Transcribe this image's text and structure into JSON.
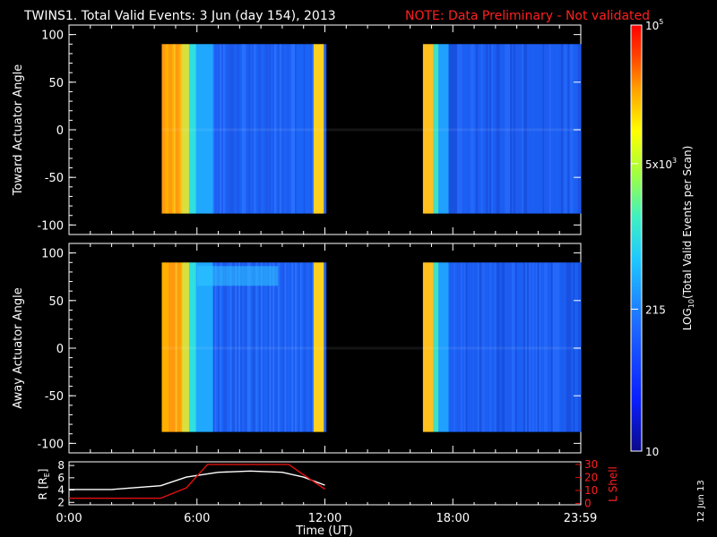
{
  "chart_data": {
    "type": "heatmap",
    "title": "TWINS1. Total Valid Events:  3 Jun (day 154), 2013",
    "note": "NOTE: Data Preliminary - Not validated",
    "colorbar": {
      "label": "LOG",
      "label_sub": "10",
      "label_rest": "(Total Valid Events per Scan)",
      "ticks": [
        {
          "base": "10",
          "exp": "5",
          "value": 100000
        },
        {
          "base": "5x10",
          "exp": "3",
          "value": 5000
        },
        {
          "base": "215",
          "exp": "",
          "value": 215
        },
        {
          "base": "10",
          "exp": "",
          "value": 10
        }
      ],
      "range": [
        10,
        100000
      ],
      "scale": "log"
    },
    "x_ticks": [
      "0:00",
      "6:00",
      "12:00",
      "18:00",
      "23:59"
    ],
    "xlabel": "Time (UT)",
    "xlim_hours": [
      0,
      24
    ],
    "panels": [
      {
        "ylabel": "Toward Actuator Angle",
        "yticks": [
          "100",
          "50",
          "0",
          "-50",
          "-100"
        ],
        "ylim": [
          -110,
          110
        ],
        "data_intervals_hours": [
          [
            4.35,
            12.05
          ],
          [
            16.6,
            24.0
          ]
        ],
        "angle_range": [
          -88,
          90
        ]
      },
      {
        "ylabel": "Away Actuator Angle",
        "yticks": [
          "100",
          "50",
          "0",
          "-50",
          "-100"
        ],
        "ylim": [
          -110,
          110
        ],
        "data_intervals_hours": [
          [
            4.35,
            12.05
          ],
          [
            16.6,
            24.0
          ]
        ],
        "angle_range": [
          -88,
          90
        ]
      }
    ],
    "orbit_panel": {
      "ylabel_left": "R [R",
      "ylabel_left_sub": "E",
      "ylabel_left_end": "]",
      "yticks_left": [
        "8",
        "6",
        "4",
        "2"
      ],
      "ylabel_right": "L Shell",
      "yticks_right": [
        "30",
        "20",
        "10",
        "0"
      ],
      "r_series": {
        "name": "R",
        "x": [
          0,
          2,
          4.3,
          5.5,
          7,
          8.5,
          10,
          11,
          12
        ],
        "y": [
          4.1,
          4.1,
          4.7,
          6.1,
          6.9,
          7.1,
          6.9,
          6.1,
          4.8
        ]
      },
      "l_series": {
        "name": "L Shell",
        "x": [
          0,
          4.3,
          5.5,
          6.5,
          10.3,
          11,
          12
        ],
        "y": [
          4,
          4,
          12,
          30,
          30,
          22,
          11
        ]
      }
    },
    "date_stamp": "12 Jun 13"
  }
}
